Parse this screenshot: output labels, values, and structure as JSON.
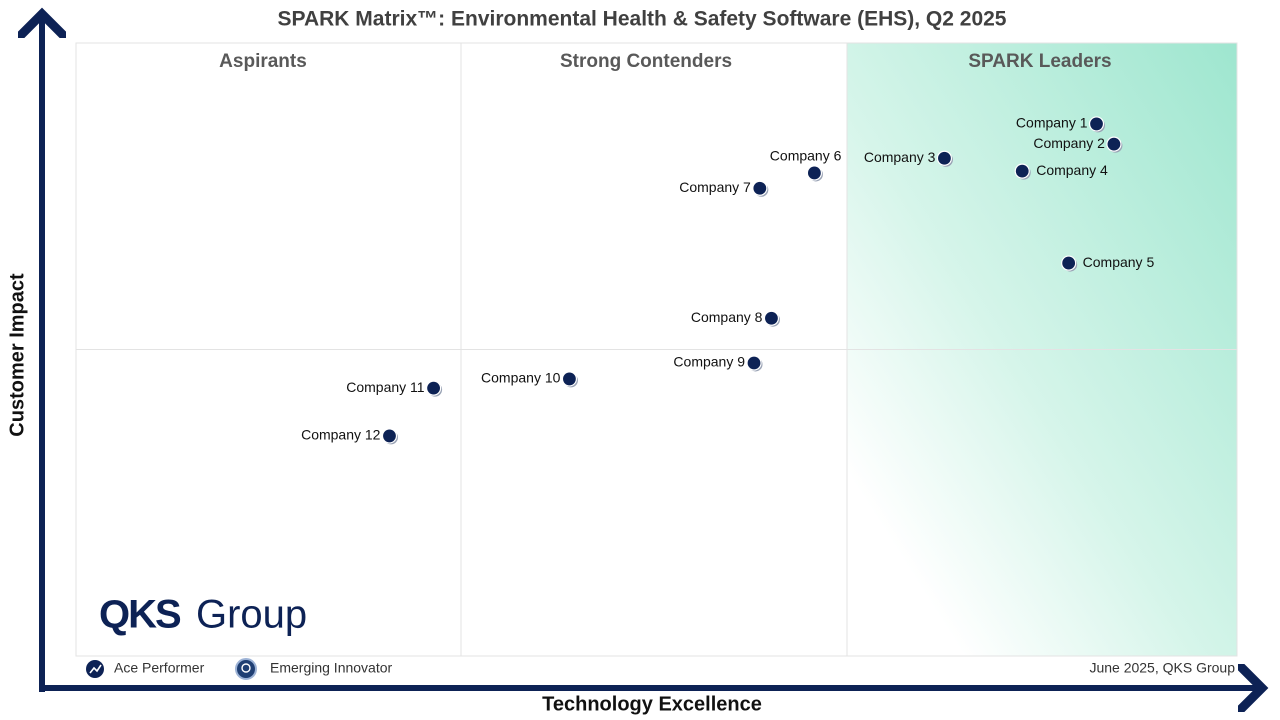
{
  "chart_data": {
    "type": "scatter",
    "title": "SPARK Matrix™: Environmental Health & Safety Software (EHS), Q2 2025",
    "x_label": "Technology Excellence",
    "y_label": "Customer Impact",
    "quadrants": [
      "Aspirants",
      "Strong Contenders",
      "SPARK Leaders"
    ],
    "xlim": [
      0,
      100
    ],
    "ylim": [
      0,
      100
    ],
    "color": "#0d2255",
    "points": [
      {
        "name": "Company 1",
        "x": 87.9,
        "y": 86.8
      },
      {
        "name": "Company 2",
        "x": 89.4,
        "y": 83.5
      },
      {
        "name": "Company 3",
        "x": 74.8,
        "y": 81.2
      },
      {
        "name": "Company 4",
        "x": 81.5,
        "y": 79.1
      },
      {
        "name": "Company 5",
        "x": 85.5,
        "y": 64.1
      },
      {
        "name": "Company 6",
        "x": 63.6,
        "y": 78.8
      },
      {
        "name": "Company 7",
        "x": 58.9,
        "y": 76.3
      },
      {
        "name": "Company 8",
        "x": 59.9,
        "y": 55.1
      },
      {
        "name": "Company 9",
        "x": 58.4,
        "y": 47.8
      },
      {
        "name": "Company 10",
        "x": 42.5,
        "y": 45.2
      },
      {
        "name": "Company 11",
        "x": 30.8,
        "y": 43.7
      },
      {
        "name": "Company 12",
        "x": 27.0,
        "y": 35.9
      }
    ],
    "legend": [
      "Ace Performer",
      "Emerging Innovator"
    ],
    "footnote": "June 2025, QKS Group",
    "logo": [
      "QKS",
      "Group"
    ]
  }
}
